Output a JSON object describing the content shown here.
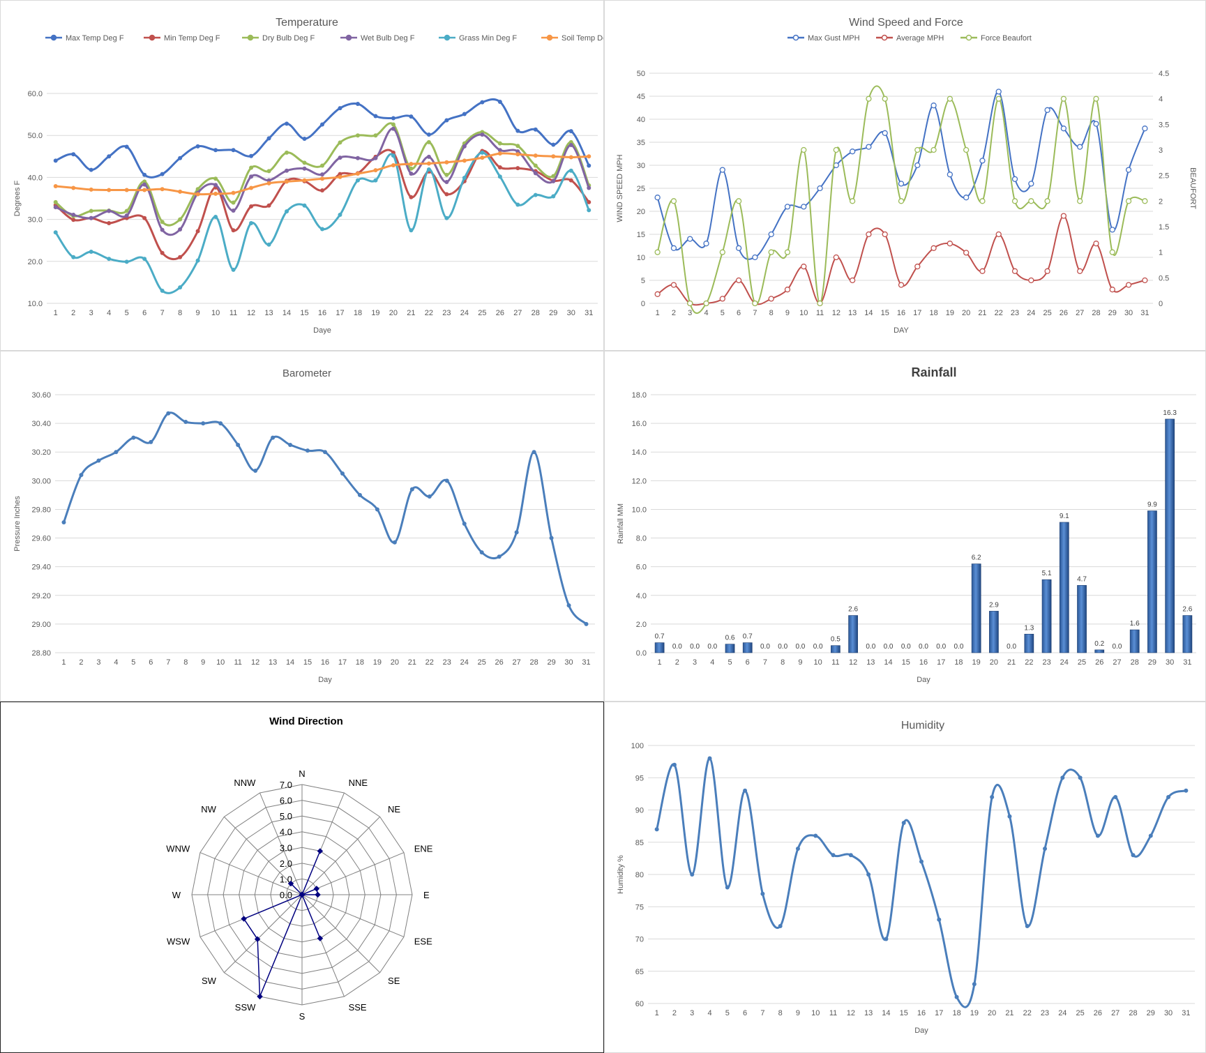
{
  "chart_data": [
    {
      "id": "temperature",
      "type": "line",
      "title": "Temperature",
      "xlabel": "Daye",
      "ylabel": "Degrees F",
      "categories": [
        "1",
        "2",
        "3",
        "4",
        "5",
        "6",
        "7",
        "8",
        "9",
        "10",
        "11",
        "12",
        "13",
        "14",
        "15",
        "16",
        "17",
        "18",
        "19",
        "20",
        "21",
        "22",
        "23",
        "24",
        "25",
        "26",
        "27",
        "28",
        "29",
        "30",
        "31"
      ],
      "ylim": [
        10,
        60
      ],
      "yticks": [
        "10.0",
        "20.0",
        "30.0",
        "40.0",
        "50.0",
        "60.0"
      ],
      "grid": true,
      "legend": "top",
      "series": [
        {
          "name": "Max Temp Deg F",
          "color": "#4472c4",
          "values": [
            44,
            45.5,
            41.8,
            45,
            47.3,
            40.6,
            40.8,
            44.6,
            47.4,
            46.5,
            46.5,
            45.1,
            49.3,
            52.8,
            49.2,
            52.6,
            56.5,
            57.5,
            54.6,
            54.1,
            54.5,
            50.2,
            53.6,
            55.1,
            57.9,
            58,
            51.1,
            51.4,
            47.8,
            51,
            42.8
          ]
        },
        {
          "name": "Min Temp Deg F",
          "color": "#c0504d",
          "values": [
            33.4,
            29.9,
            30.3,
            29.1,
            30.3,
            30.3,
            22,
            21,
            27.2,
            37.6,
            27.4,
            33.1,
            33.3,
            39.2,
            39.1,
            36.9,
            40.8,
            41,
            44.9,
            45.9,
            35.3,
            41.4,
            36,
            39.1,
            46.3,
            42.4,
            42.2,
            41.5,
            39.2,
            39.3,
            34.1
          ]
        },
        {
          "name": "Dry Bulb Deg F",
          "color": "#9bbb59",
          "values": [
            34.1,
            30.8,
            32,
            32.1,
            32,
            39,
            29.4,
            30,
            37.2,
            39.7,
            34,
            42.3,
            41.5,
            45.9,
            43.5,
            42.8,
            48.3,
            50,
            50,
            52.6,
            42.1,
            48.4,
            40.6,
            48.1,
            50.8,
            48.1,
            47.5,
            42.8,
            40.3,
            48.4,
            38.1
          ]
        },
        {
          "name": "Wet Bulb Deg F",
          "color": "#8064a2",
          "values": [
            32.9,
            31.1,
            30.3,
            32,
            30.9,
            38.3,
            27.5,
            27.6,
            36.3,
            38.2,
            32.1,
            40.2,
            39.3,
            41.6,
            42.1,
            40.7,
            44.7,
            44.6,
            44.6,
            51.6,
            40.9,
            44.9,
            38.9,
            47.4,
            50.2,
            46.5,
            46.2,
            41,
            39.1,
            47.7,
            37.5
          ]
        },
        {
          "name": "Grass Min Deg F",
          "color": "#4bacc6",
          "values": [
            26.9,
            21,
            22.3,
            20.6,
            19.9,
            20.6,
            13,
            13.8,
            20.2,
            30.6,
            18,
            29.1,
            24,
            31.9,
            33.3,
            27.7,
            31.1,
            39.3,
            39.3,
            45.2,
            27.4,
            41.9,
            30.3,
            39.9,
            45.9,
            40.2,
            33.5,
            35.8,
            35.5,
            41.6,
            32.2
          ]
        },
        {
          "name": "Soil Temp Deg F",
          "color": "#f79646",
          "values": [
            37.9,
            37.5,
            37.1,
            37,
            37,
            37,
            37.2,
            36.6,
            36,
            36.1,
            36.3,
            37.5,
            38.6,
            39,
            39.3,
            39.7,
            40.1,
            40.9,
            41.7,
            42.9,
            43.2,
            43.3,
            43.6,
            44,
            44.7,
            45.7,
            45.5,
            45.2,
            45,
            44.8,
            45
          ]
        }
      ]
    },
    {
      "id": "wind",
      "type": "line",
      "title": "Wind Speed and Force",
      "xlabel": "DAY",
      "ylabel": "WIND SPEED MPH",
      "y2label": "BEAUFORT",
      "categories": [
        "1",
        "2",
        "3",
        "4",
        "5",
        "6",
        "7",
        "8",
        "9",
        "10",
        "11",
        "12",
        "13",
        "14",
        "15",
        "16",
        "17",
        "18",
        "19",
        "20",
        "21",
        "22",
        "23",
        "24",
        "25",
        "26",
        "27",
        "28",
        "29",
        "30",
        "31"
      ],
      "ylim": [
        0,
        50
      ],
      "yticks": [
        "0",
        "5",
        "10",
        "15",
        "20",
        "25",
        "30",
        "35",
        "40",
        "45",
        "50"
      ],
      "y2lim": [
        0,
        4.5
      ],
      "y2ticks": [
        "0",
        "0.5",
        "1",
        "1.5",
        "2",
        "2.5",
        "3",
        "3.5",
        "4",
        "4.5"
      ],
      "grid": true,
      "legend": "top",
      "series": [
        {
          "name": "Max Gust MPH",
          "axis": "left",
          "color": "#4472c4",
          "values": [
            23,
            12,
            14,
            13,
            29,
            12,
            10,
            15,
            21,
            21,
            25,
            30,
            33,
            34,
            37,
            26,
            30,
            43,
            28,
            23,
            31,
            46,
            27,
            26,
            42,
            38,
            34,
            39,
            16,
            29,
            38
          ]
        },
        {
          "name": "Average MPH",
          "axis": "left",
          "color": "#c0504d",
          "values": [
            2,
            4,
            0,
            0,
            1,
            5,
            0,
            1,
            3,
            8,
            0,
            10,
            5,
            15,
            15,
            4,
            8,
            12,
            13,
            11,
            7,
            15,
            7,
            5,
            7,
            19,
            7,
            13,
            3,
            4,
            5
          ]
        },
        {
          "name": "Force Beaufort",
          "axis": "right",
          "color": "#9bbb59",
          "values": [
            1,
            2,
            0,
            0,
            1,
            2,
            0,
            1,
            1,
            3,
            0,
            3,
            2,
            4,
            4,
            2,
            3,
            3,
            4,
            3,
            2,
            4,
            2,
            2,
            2,
            4,
            2,
            4,
            1,
            2,
            2
          ]
        }
      ]
    },
    {
      "id": "barometer",
      "type": "line",
      "title": "Barometer",
      "xlabel": "Day",
      "ylabel": "Pressure Inches",
      "categories": [
        "1",
        "2",
        "3",
        "4",
        "5",
        "6",
        "7",
        "8",
        "9",
        "10",
        "11",
        "12",
        "13",
        "14",
        "15",
        "16",
        "17",
        "18",
        "19",
        "20",
        "21",
        "22",
        "23",
        "24",
        "25",
        "26",
        "27",
        "28",
        "29",
        "30",
        "31"
      ],
      "ylim": [
        28.8,
        30.6
      ],
      "yticks": [
        "28.80",
        "29.00",
        "29.20",
        "29.40",
        "29.60",
        "29.80",
        "30.00",
        "30.20",
        "30.40",
        "30.60"
      ],
      "grid": true,
      "series": [
        {
          "name": "",
          "color": "#4a7ebb",
          "values": [
            29.71,
            30.04,
            30.14,
            30.2,
            30.3,
            30.27,
            30.47,
            30.41,
            30.4,
            30.4,
            30.25,
            30.07,
            30.3,
            30.25,
            30.21,
            30.2,
            30.05,
            29.9,
            29.8,
            29.57,
            29.94,
            29.89,
            30,
            29.7,
            29.5,
            29.47,
            29.64,
            30.2,
            29.6,
            29.13,
            29
          ]
        }
      ]
    },
    {
      "id": "rainfall",
      "type": "bar",
      "title": "Rainfall",
      "xlabel": "Day",
      "ylabel": "Rainfall MM",
      "categories": [
        "1",
        "2",
        "3",
        "4",
        "5",
        "6",
        "7",
        "8",
        "9",
        "10",
        "11",
        "12",
        "13",
        "14",
        "15",
        "16",
        "17",
        "18",
        "19",
        "20",
        "21",
        "22",
        "23",
        "24",
        "25",
        "26",
        "27",
        "28",
        "29",
        "30",
        "31"
      ],
      "values": [
        0.7,
        0,
        0,
        0,
        0.6,
        0.7,
        0,
        0,
        0,
        0,
        0.5,
        2.6,
        0,
        0,
        0,
        0,
        0,
        0,
        6.2,
        2.9,
        0,
        1.3,
        5.1,
        9.1,
        4.7,
        0.2,
        0,
        1.6,
        9.9,
        16.3,
        2.6
      ],
      "labels": [
        "0.7",
        "0.0",
        "0.0",
        "0.0",
        "0.6",
        "0.7",
        "0.0",
        "0.0",
        "0.0",
        "0.0",
        "0.5",
        "2.6",
        "0.0",
        "0.0",
        "0.0",
        "0.0",
        "0.0",
        "0.0",
        "6.2",
        "2.9",
        "0.0",
        "1.3",
        "5.1",
        "9.1",
        "4.7",
        "0.2",
        "0.0",
        "1.6",
        "9.9",
        "16.3",
        "2.6"
      ],
      "ylim": [
        0,
        18
      ],
      "yticks": [
        "0.0",
        "2.0",
        "4.0",
        "6.0",
        "8.0",
        "10.0",
        "12.0",
        "14.0",
        "16.0",
        "18.0"
      ],
      "grid": true,
      "color": "#3c6fb4"
    },
    {
      "id": "winddirection",
      "type": "radar",
      "title": "Wind Direction",
      "categories": [
        "N",
        "NNE",
        "NE",
        "ENE",
        "E",
        "ESE",
        "SE",
        "SSE",
        "S",
        "SSW",
        "SW",
        "WSW",
        "W",
        "WNW",
        "NW",
        "NNW"
      ],
      "values": [
        0,
        3,
        0,
        1,
        1,
        0,
        0,
        3,
        0,
        7,
        4,
        4,
        0,
        0,
        1,
        0
      ],
      "rlim": [
        0,
        7
      ],
      "rticks": [
        "0.0",
        "1.0",
        "2.0",
        "3.0",
        "4.0",
        "5.0",
        "6.0",
        "7.0"
      ],
      "color": "#000080"
    },
    {
      "id": "humidity",
      "type": "line",
      "title": "Humidity",
      "xlabel": "Day",
      "ylabel": "Humidity %",
      "categories": [
        "1",
        "2",
        "3",
        "4",
        "5",
        "6",
        "7",
        "8",
        "9",
        "10",
        "11",
        "12",
        "13",
        "14",
        "15",
        "16",
        "17",
        "18",
        "19",
        "20",
        "21",
        "22",
        "23",
        "24",
        "25",
        "26",
        "27",
        "28",
        "29",
        "30",
        "31"
      ],
      "ylim": [
        60,
        100
      ],
      "yticks": [
        "60",
        "65",
        "70",
        "75",
        "80",
        "85",
        "90",
        "95",
        "100"
      ],
      "grid": true,
      "series": [
        {
          "name": "",
          "color": "#4a7ebb",
          "values": [
            87,
            97,
            80,
            98,
            78,
            93,
            77,
            72,
            84,
            86,
            83,
            83,
            80,
            70,
            88,
            82,
            73,
            61,
            63,
            92,
            89,
            72,
            84,
            95,
            95,
            86,
            92,
            83,
            86,
            92,
            93
          ]
        }
      ]
    }
  ]
}
